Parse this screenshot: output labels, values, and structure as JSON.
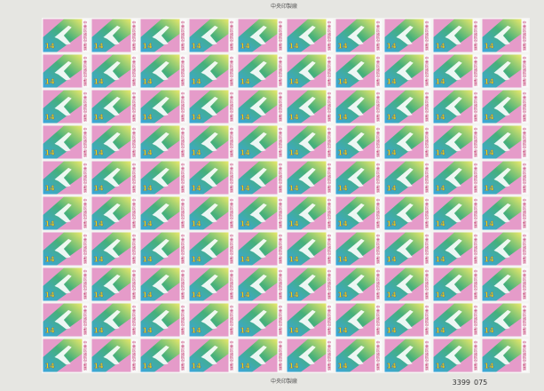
{
  "sheet": {
    "rows": 10,
    "columns": 10,
    "stamp": {
      "denomination": "14",
      "inscription": "中華民國航空郵票"
    },
    "margin": {
      "top_center": "中央印製廠",
      "bottom_center": "中央印製廠"
    },
    "serial": "3399",
    "plate": "075"
  }
}
